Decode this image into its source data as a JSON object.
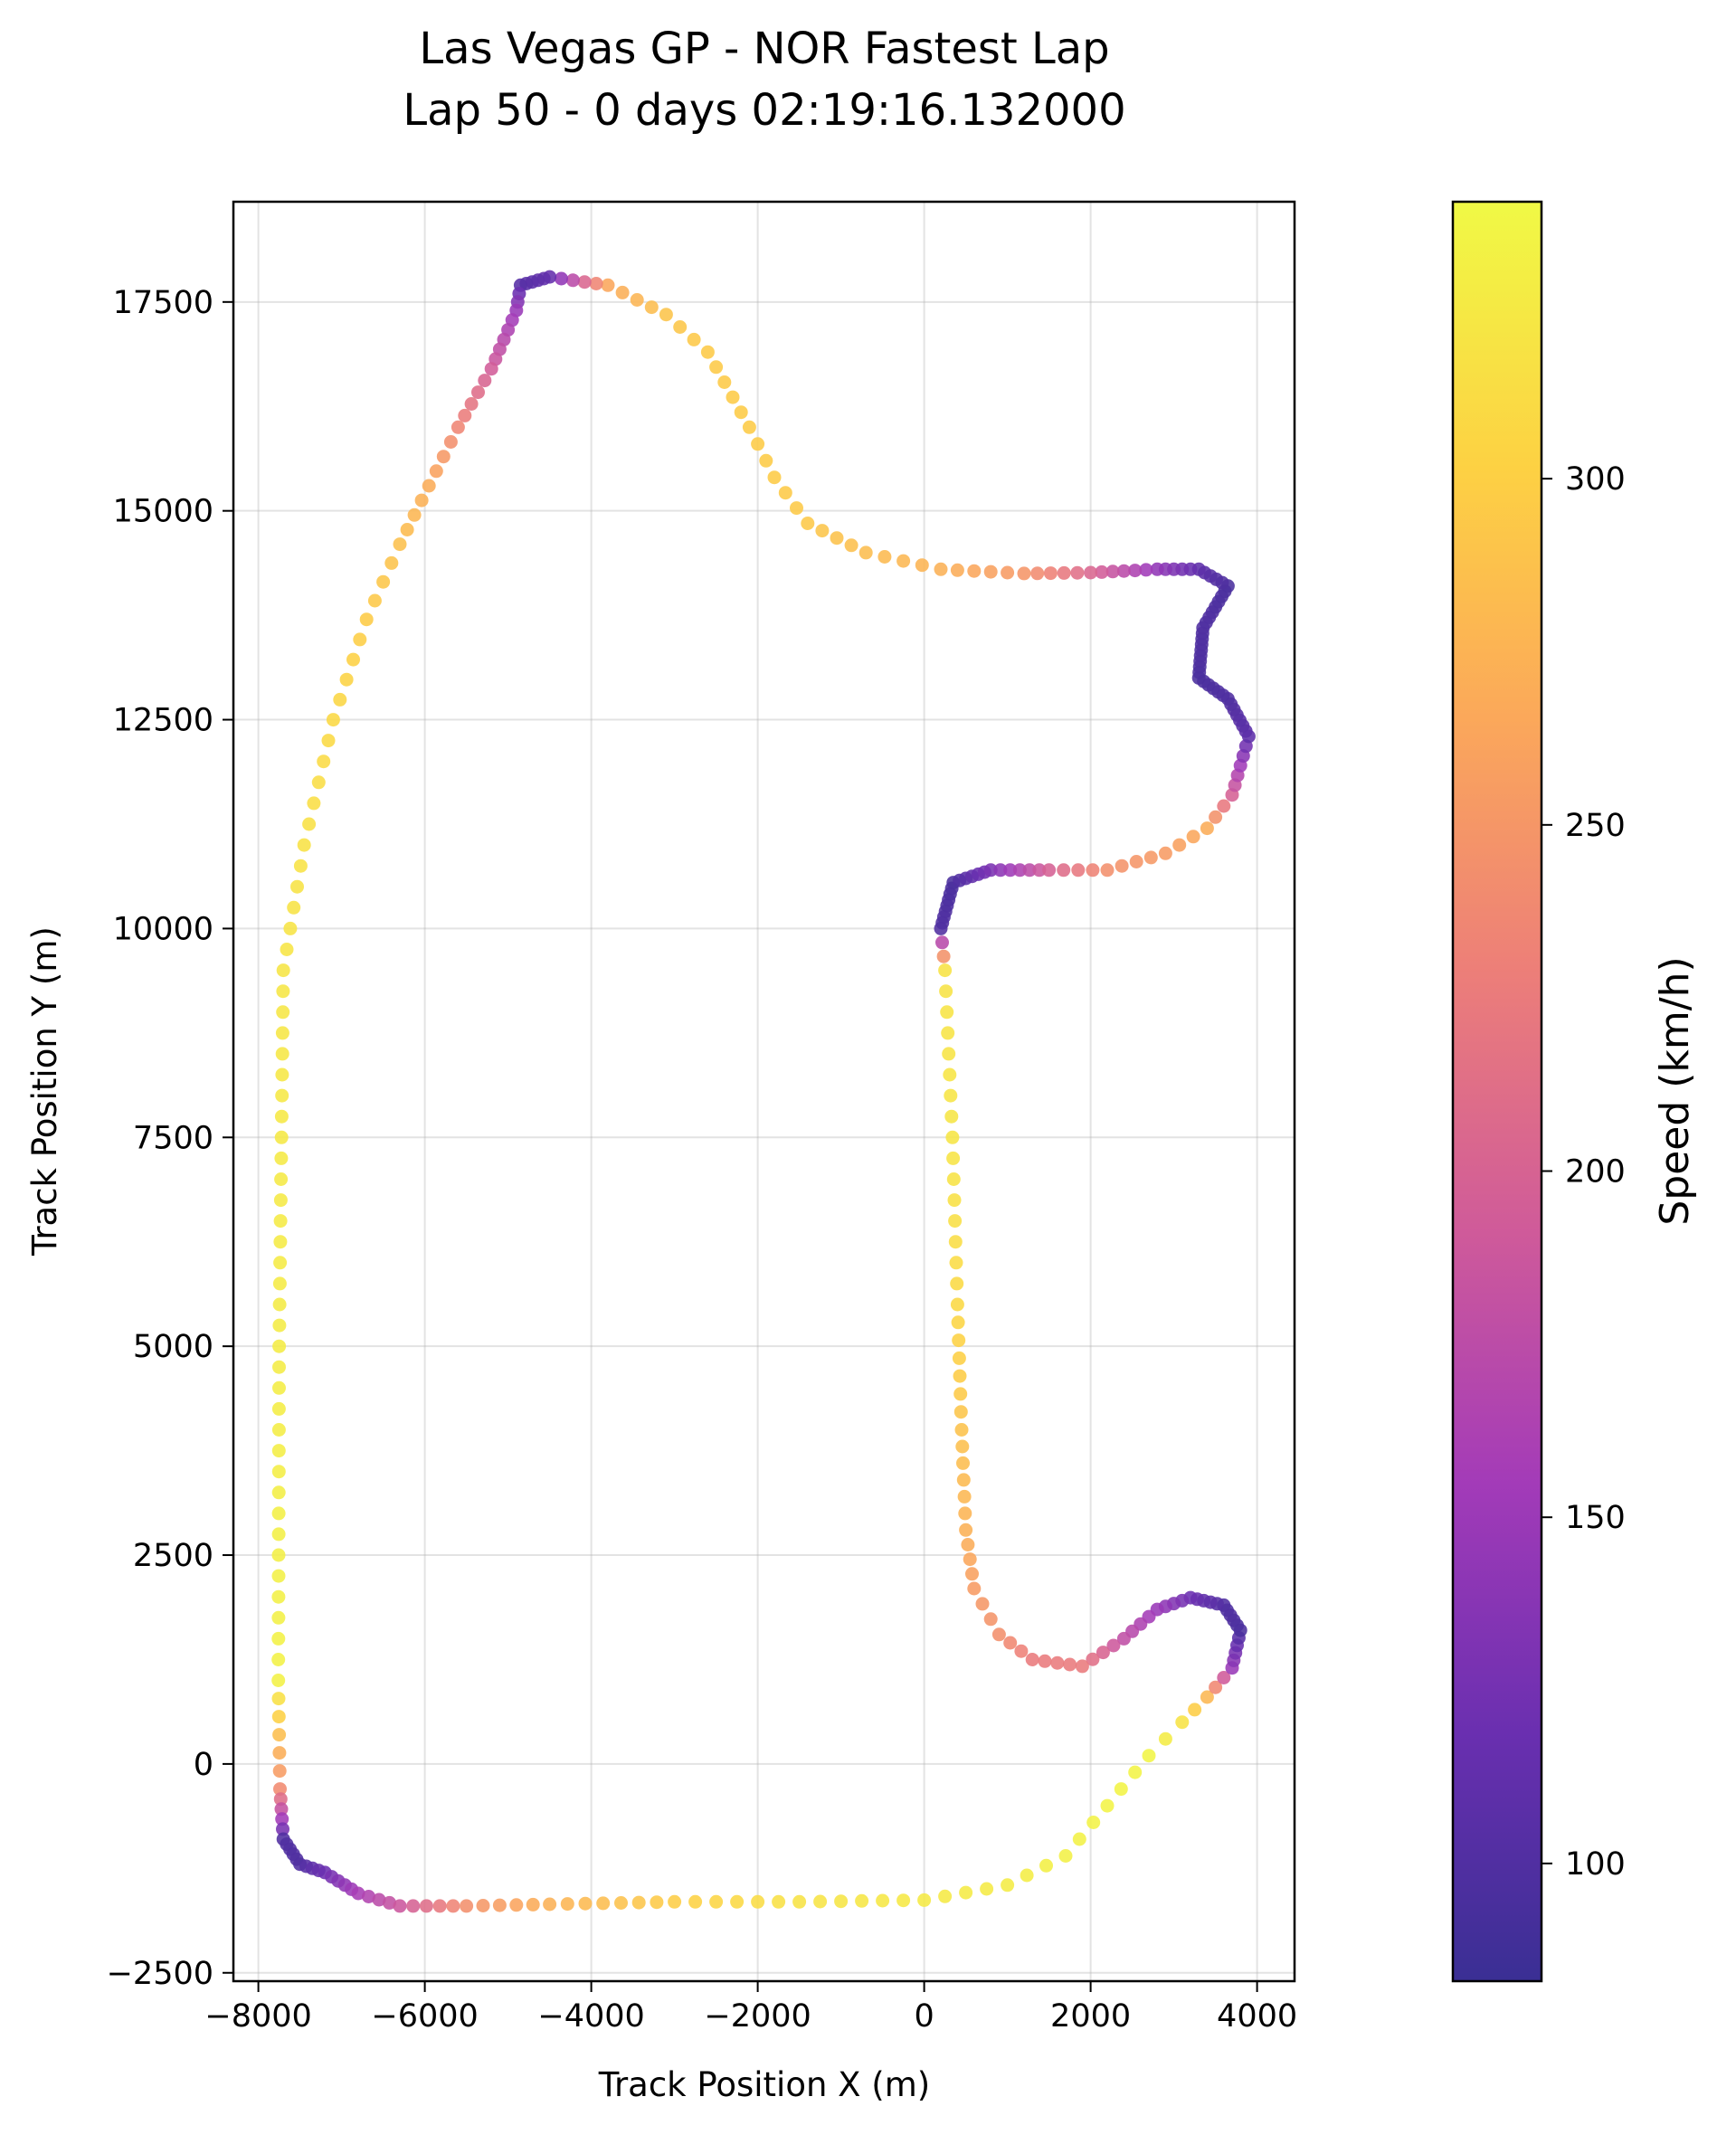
{
  "chart_data": {
    "type": "scatter",
    "title": "Las Vegas GP - NOR Fastest Lap",
    "subtitle": "Lap 50 - 0 days 02:19:16.132000",
    "xlabel": "Track Position X (m)",
    "ylabel": "Track Position Y (m)",
    "xlim": [
      -8300,
      4450
    ],
    "ylim": [
      -2600,
      18700
    ],
    "xticks": [
      -8000,
      -6000,
      -4000,
      -2000,
      0,
      2000,
      4000
    ],
    "xtick_labels": [
      "−8000",
      "−6000",
      "−4000",
      "−2000",
      "0",
      "2000",
      "4000"
    ],
    "yticks": [
      -2500,
      0,
      2500,
      5000,
      7500,
      10000,
      12500,
      15000,
      17500
    ],
    "ytick_labels": [
      "−2500",
      "0",
      "2500",
      "5000",
      "7500",
      "10000",
      "12500",
      "15000",
      "17500"
    ],
    "grid": true,
    "colormap": "plasma",
    "colors": [
      "#3a2f94",
      "#6a2fb0",
      "#a33bb8",
      "#cf5a9a",
      "#ed7f78",
      "#fba85a",
      "#fdd143",
      "#f0f945"
    ],
    "colorbar": {
      "label": "Speed (km/h)",
      "range": [
        83,
        340
      ],
      "ticks": [
        100,
        150,
        200,
        250,
        300
      ],
      "tick_labels": [
        "100",
        "150",
        "200",
        "250",
        "300"
      ]
    },
    "track_waypoints": [
      {
        "x": -7700,
        "y": 9500,
        "speed": 322
      },
      {
        "x": -7750,
        "y": 5000,
        "speed": 328
      },
      {
        "x": -7760,
        "y": 1000,
        "speed": 333
      },
      {
        "x": -7740,
        "y": -300,
        "speed": 240
      },
      {
        "x": -7700,
        "y": -900,
        "speed": 100
      },
      {
        "x": -7500,
        "y": -1200,
        "speed": 100
      },
      {
        "x": -7200,
        "y": -1300,
        "speed": 120
      },
      {
        "x": -6800,
        "y": -1550,
        "speed": 160
      },
      {
        "x": -6300,
        "y": -1700,
        "speed": 190
      },
      {
        "x": -5500,
        "y": -1700,
        "speed": 245
      },
      {
        "x": -4500,
        "y": -1680,
        "speed": 275
      },
      {
        "x": -3000,
        "y": -1650,
        "speed": 300
      },
      {
        "x": -1500,
        "y": -1650,
        "speed": 320
      },
      {
        "x": 0,
        "y": -1630,
        "speed": 325
      },
      {
        "x": 1000,
        "y": -1450,
        "speed": 328
      },
      {
        "x": 1700,
        "y": -1100,
        "speed": 332
      },
      {
        "x": 2200,
        "y": -500,
        "speed": 335
      },
      {
        "x": 2700,
        "y": 100,
        "speed": 336
      },
      {
        "x": 3100,
        "y": 500,
        "speed": 320
      },
      {
        "x": 3400,
        "y": 800,
        "speed": 280
      },
      {
        "x": 3700,
        "y": 1150,
        "speed": 150
      },
      {
        "x": 3800,
        "y": 1600,
        "speed": 95
      },
      {
        "x": 3600,
        "y": 1900,
        "speed": 100
      },
      {
        "x": 3200,
        "y": 1990,
        "speed": 120
      },
      {
        "x": 2800,
        "y": 1850,
        "speed": 150
      },
      {
        "x": 2400,
        "y": 1500,
        "speed": 180
      },
      {
        "x": 1900,
        "y": 1170,
        "speed": 225
      },
      {
        "x": 1300,
        "y": 1250,
        "speed": 225
      },
      {
        "x": 900,
        "y": 1550,
        "speed": 245
      },
      {
        "x": 600,
        "y": 2100,
        "speed": 255
      },
      {
        "x": 500,
        "y": 2800,
        "speed": 275
      },
      {
        "x": 450,
        "y": 4000,
        "speed": 290
      },
      {
        "x": 400,
        "y": 5500,
        "speed": 310
      },
      {
        "x": 340,
        "y": 7500,
        "speed": 322
      },
      {
        "x": 250,
        "y": 9500,
        "speed": 320
      },
      {
        "x": 200,
        "y": 10000,
        "speed": 100
      },
      {
        "x": 350,
        "y": 10550,
        "speed": 95
      },
      {
        "x": 800,
        "y": 10700,
        "speed": 130
      },
      {
        "x": 1500,
        "y": 10700,
        "speed": 200
      },
      {
        "x": 2200,
        "y": 10700,
        "speed": 245
      },
      {
        "x": 2900,
        "y": 10900,
        "speed": 255
      },
      {
        "x": 3400,
        "y": 11200,
        "speed": 270
      },
      {
        "x": 3700,
        "y": 11600,
        "speed": 200
      },
      {
        "x": 3900,
        "y": 12300,
        "speed": 110
      },
      {
        "x": 3650,
        "y": 12750,
        "speed": 100
      },
      {
        "x": 3300,
        "y": 13000,
        "speed": 95
      },
      {
        "x": 3350,
        "y": 13600,
        "speed": 100
      },
      {
        "x": 3650,
        "y": 14100,
        "speed": 95
      },
      {
        "x": 3300,
        "y": 14300,
        "speed": 110
      },
      {
        "x": 2800,
        "y": 14300,
        "speed": 145
      },
      {
        "x": 2000,
        "y": 14260,
        "speed": 205
      },
      {
        "x": 1200,
        "y": 14250,
        "speed": 250
      },
      {
        "x": 200,
        "y": 14300,
        "speed": 275
      },
      {
        "x": -700,
        "y": 14500,
        "speed": 285
      },
      {
        "x": -1400,
        "y": 14850,
        "speed": 295
      },
      {
        "x": -1800,
        "y": 15400,
        "speed": 298
      },
      {
        "x": -2100,
        "y": 16000,
        "speed": 298
      },
      {
        "x": -2600,
        "y": 16900,
        "speed": 297
      },
      {
        "x": -3100,
        "y": 17350,
        "speed": 292
      },
      {
        "x": -3800,
        "y": 17700,
        "speed": 265
      },
      {
        "x": -4500,
        "y": 17800,
        "speed": 115
      },
      {
        "x": -4850,
        "y": 17700,
        "speed": 105
      },
      {
        "x": -4900,
        "y": 17400,
        "speed": 150
      },
      {
        "x": -5200,
        "y": 16700,
        "speed": 195
      },
      {
        "x": -5600,
        "y": 16000,
        "speed": 235
      },
      {
        "x": -5950,
        "y": 15300,
        "speed": 270
      },
      {
        "x": -6300,
        "y": 14600,
        "speed": 288
      },
      {
        "x": -6700,
        "y": 13700,
        "speed": 298
      },
      {
        "x": -7100,
        "y": 12500,
        "speed": 310
      },
      {
        "x": -7450,
        "y": 11000,
        "speed": 318
      },
      {
        "x": -7700,
        "y": 9500,
        "speed": 322
      }
    ]
  }
}
